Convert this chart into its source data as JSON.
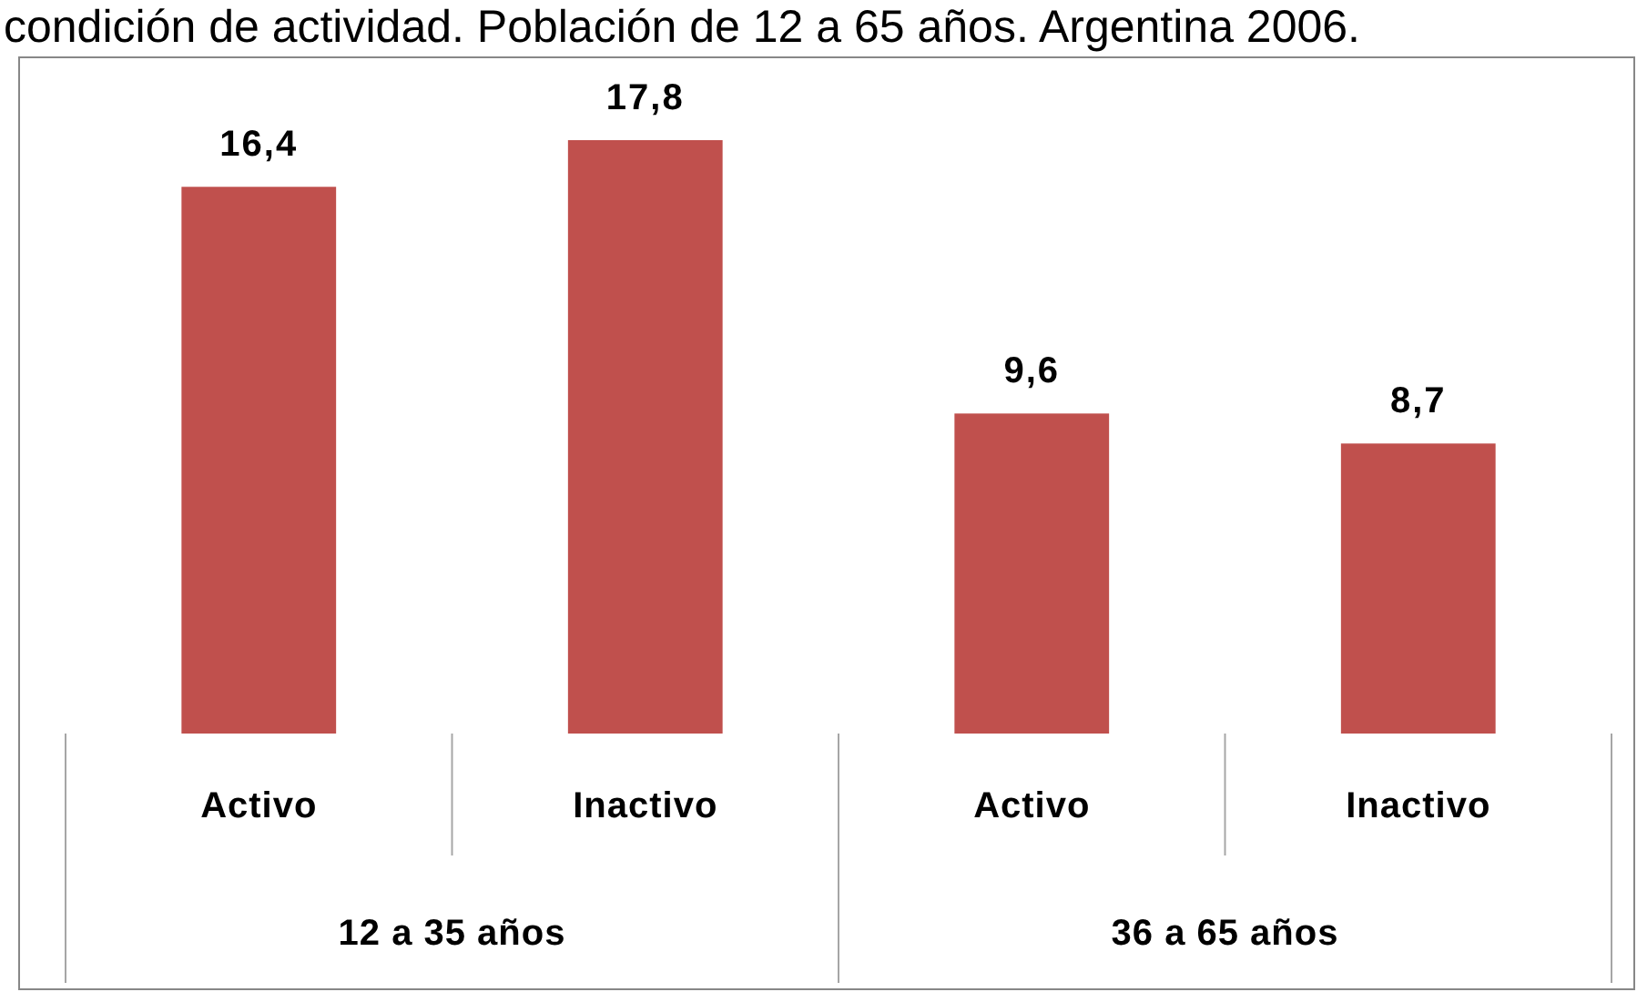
{
  "chart_data": {
    "type": "bar",
    "title": "condición de actividad. Población de 12 a 65 años. Argentina 2006.",
    "categories": [
      "Activo",
      "Inactivo",
      "Activo",
      "Inactivo"
    ],
    "values": [
      16.4,
      17.8,
      9.6,
      8.7
    ],
    "color": "#c0504d",
    "value_labels": [
      "16,4",
      "17,8",
      "9,6",
      "8,7"
    ],
    "annotations": [
      "12 a 35 años",
      "36 a 65 años"
    ]
  }
}
